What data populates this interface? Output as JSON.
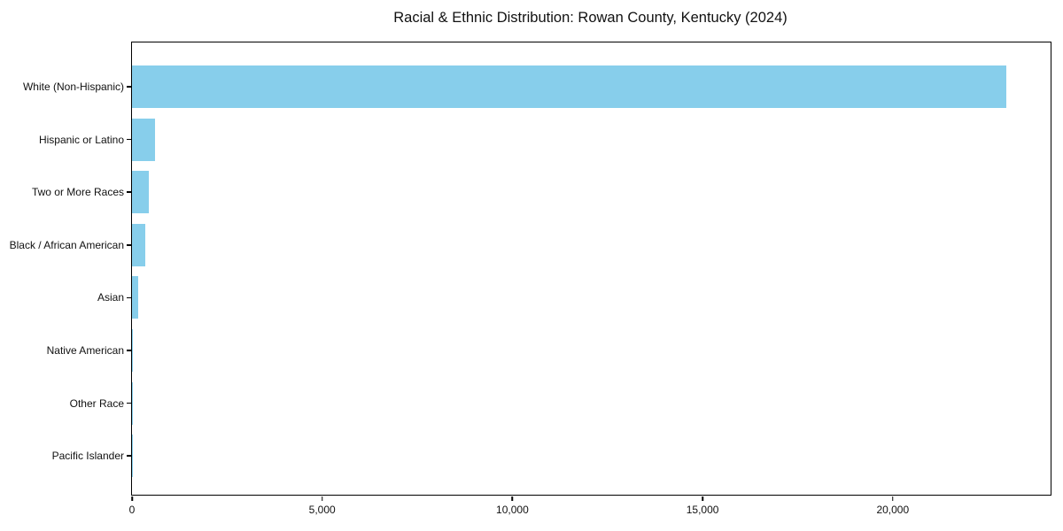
{
  "title": "Racial & Ethnic Distribution: Rowan County, Kentucky (2024)",
  "chart_data": {
    "type": "bar",
    "orientation": "horizontal",
    "title": "Racial & Ethnic Distribution: Rowan County, Kentucky (2024)",
    "categories": [
      "White (Non-Hispanic)",
      "Hispanic or Latino",
      "Two or More Races",
      "Black / African American",
      "Asian",
      "Native American",
      "Other Race",
      "Pacific Islander"
    ],
    "values": [
      22980,
      600,
      450,
      350,
      170,
      20,
      15,
      5
    ],
    "xlabel": "",
    "ylabel": "",
    "xlim": [
      0,
      24150
    ],
    "xticks": {
      "values": [
        0,
        5000,
        10000,
        15000,
        20000
      ],
      "labels": [
        "0",
        "5,000",
        "10,000",
        "15,000",
        "20,000"
      ]
    },
    "grid": false,
    "legend": null,
    "bar_color": "#87CEEB",
    "background": "#ffffff",
    "frame_color": "#000000"
  }
}
